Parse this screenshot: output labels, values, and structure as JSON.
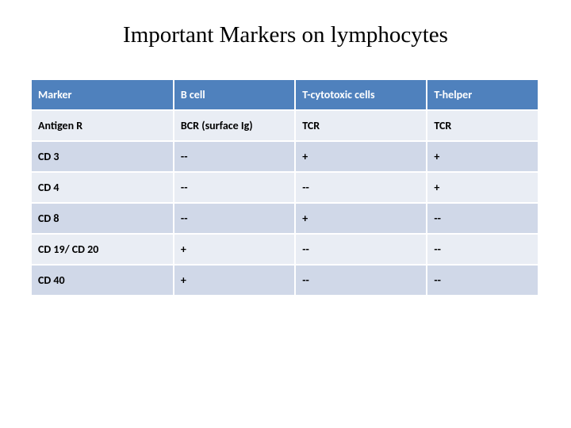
{
  "title": "Important Markers on lymphocytes",
  "table": {
    "type": "table",
    "header_bg": "#4f81bd",
    "header_fg": "#ffffff",
    "row_alt_bg": [
      "#e9edf4",
      "#d0d8e8"
    ],
    "border_color": "#ffffff",
    "font_weight": 700,
    "font_size_pt": 14,
    "column_widths_pct": [
      28,
      24,
      26,
      22
    ],
    "columns": [
      "Marker",
      "B cell",
      "T-cytotoxic cells",
      "T-helper"
    ],
    "rows": [
      [
        "Antigen R",
        "BCR (surface Ig)",
        "TCR",
        "TCR"
      ],
      [
        "CD 3",
        "--",
        "+",
        "+"
      ],
      [
        "CD 4",
        "--",
        "--",
        "+"
      ],
      [
        "CD 8",
        "--",
        "+",
        "--"
      ],
      [
        "CD 19/ CD 20",
        "+",
        "--",
        "--"
      ],
      [
        "CD 40",
        "+",
        "--",
        "--"
      ]
    ]
  }
}
